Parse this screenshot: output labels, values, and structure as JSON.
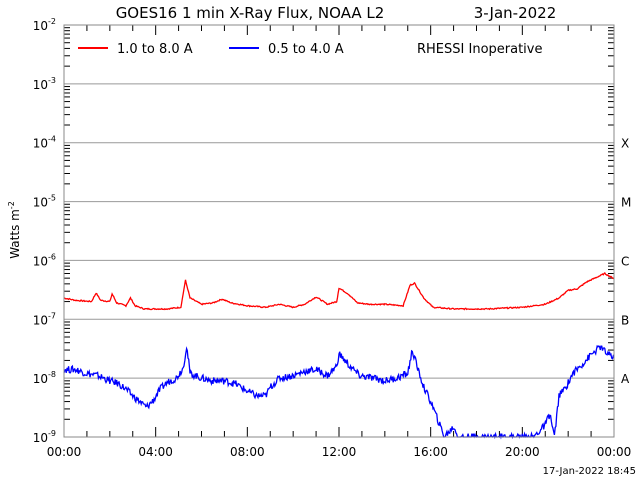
{
  "chart_data": {
    "type": "line",
    "title": "GOES16 1 min X-Ray Flux, NOAA L2",
    "date": "3-Jan-2022",
    "ylabel": "Watts m",
    "ylabel_exp": "-2",
    "ylim": [
      1e-09,
      0.01
    ],
    "yscale": "log",
    "xlim": [
      0,
      24
    ],
    "x_ticks": [
      {
        "hour": 0,
        "label": "00:00"
      },
      {
        "hour": 4,
        "label": "04:00"
      },
      {
        "hour": 8,
        "label": "08:00"
      },
      {
        "hour": 12,
        "label": "12:00"
      },
      {
        "hour": 16,
        "label": "16:00"
      },
      {
        "hour": 20,
        "label": "20:00"
      },
      {
        "hour": 24,
        "label": "00:00"
      }
    ],
    "y_ticks": [
      {
        "exp": -2,
        "base": "10",
        "sup": "-2"
      },
      {
        "exp": -3,
        "base": "10",
        "sup": "-3"
      },
      {
        "exp": -4,
        "base": "10",
        "sup": "-4"
      },
      {
        "exp": -5,
        "base": "10",
        "sup": "-5"
      },
      {
        "exp": -6,
        "base": "10",
        "sup": "-6"
      },
      {
        "exp": -7,
        "base": "10",
        "sup": "-7"
      },
      {
        "exp": -8,
        "base": "10",
        "sup": "-8"
      },
      {
        "exp": -9,
        "base": "10",
        "sup": "-9"
      }
    ],
    "flare_classes": [
      {
        "exp": -4,
        "label": "X"
      },
      {
        "exp": -5,
        "label": "M"
      },
      {
        "exp": -6,
        "label": "C"
      },
      {
        "exp": -7,
        "label": "B"
      },
      {
        "exp": -8,
        "label": "A"
      }
    ],
    "legend": {
      "placement": "top-left",
      "note": "RHESSI Inoperative"
    },
    "series": [
      {
        "name": "1.0 to 8.0 A",
        "color": "#ff0000",
        "points": [
          [
            0,
            2.3e-07
          ],
          [
            0.5,
            2.1e-07
          ],
          [
            1.2,
            2e-07
          ],
          [
            1.4,
            2.8e-07
          ],
          [
            1.6,
            2.1e-07
          ],
          [
            2.0,
            2e-07
          ],
          [
            2.1,
            2.7e-07
          ],
          [
            2.3,
            1.9e-07
          ],
          [
            2.7,
            1.7e-07
          ],
          [
            2.9,
            2.3e-07
          ],
          [
            3.1,
            1.7e-07
          ],
          [
            3.5,
            1.5e-07
          ],
          [
            4.5,
            1.5e-07
          ],
          [
            5.1,
            1.6e-07
          ],
          [
            5.3,
            4.6e-07
          ],
          [
            5.5,
            2.3e-07
          ],
          [
            6.0,
            1.8e-07
          ],
          [
            6.5,
            1.9e-07
          ],
          [
            6.9,
            2.2e-07
          ],
          [
            7.3,
            1.9e-07
          ],
          [
            8.0,
            1.7e-07
          ],
          [
            8.8,
            1.6e-07
          ],
          [
            9.4,
            1.8e-07
          ],
          [
            10.0,
            1.6e-07
          ],
          [
            10.5,
            1.8e-07
          ],
          [
            11.0,
            2.4e-07
          ],
          [
            11.5,
            1.8e-07
          ],
          [
            11.9,
            2e-07
          ],
          [
            12.0,
            3.4e-07
          ],
          [
            12.4,
            2.7e-07
          ],
          [
            12.8,
            1.9e-07
          ],
          [
            13.3,
            1.8e-07
          ],
          [
            14.0,
            1.8e-07
          ],
          [
            14.8,
            1.7e-07
          ],
          [
            15.1,
            3.8e-07
          ],
          [
            15.3,
            4.1e-07
          ],
          [
            15.7,
            2.3e-07
          ],
          [
            16.1,
            1.6e-07
          ],
          [
            17.0,
            1.5e-07
          ],
          [
            18.5,
            1.5e-07
          ],
          [
            20.0,
            1.6e-07
          ],
          [
            21.0,
            1.8e-07
          ],
          [
            21.6,
            2.3e-07
          ],
          [
            22.0,
            3.1e-07
          ],
          [
            22.4,
            3.3e-07
          ],
          [
            22.8,
            4.3e-07
          ],
          [
            23.3,
            5.3e-07
          ],
          [
            23.6,
            6e-07
          ],
          [
            24,
            4.9e-07
          ]
        ]
      },
      {
        "name": "0.5 to 4.0 A",
        "color": "#0000ff",
        "points": [
          [
            0,
            1.4e-08
          ],
          [
            0.5,
            1.4e-08
          ],
          [
            1.0,
            1.2e-08
          ],
          [
            1.5,
            1.1e-08
          ],
          [
            2.0,
            9e-09
          ],
          [
            2.4,
            8e-09
          ],
          [
            2.7,
            6.5e-09
          ],
          [
            3.0,
            5e-09
          ],
          [
            3.3,
            4e-09
          ],
          [
            3.6,
            3.2e-09
          ],
          [
            3.9,
            4.2e-09
          ],
          [
            4.2,
            6.5e-09
          ],
          [
            4.5,
            8.5e-09
          ],
          [
            4.9,
            1e-08
          ],
          [
            5.2,
            1.5e-08
          ],
          [
            5.35,
            3.5e-08
          ],
          [
            5.5,
            1.2e-08
          ],
          [
            6.0,
            1e-08
          ],
          [
            6.5,
            9e-09
          ],
          [
            7.0,
            9e-09
          ],
          [
            7.5,
            8e-09
          ],
          [
            8.0,
            6e-09
          ],
          [
            8.4,
            5e-09
          ],
          [
            8.8,
            5e-09
          ],
          [
            9.0,
            7e-09
          ],
          [
            9.4,
            1e-08
          ],
          [
            10.0,
            1.1e-08
          ],
          [
            10.5,
            1.3e-08
          ],
          [
            11.0,
            1.4e-08
          ],
          [
            11.5,
            1.1e-08
          ],
          [
            11.9,
            1.6e-08
          ],
          [
            12.0,
            2.6e-08
          ],
          [
            12.4,
            1.7e-08
          ],
          [
            12.9,
            1.1e-08
          ],
          [
            13.5,
            1e-08
          ],
          [
            14.0,
            9e-09
          ],
          [
            14.5,
            1e-08
          ],
          [
            15.0,
            1.2e-08
          ],
          [
            15.2,
            3e-08
          ],
          [
            15.4,
            1.6e-08
          ],
          [
            15.7,
            7e-09
          ],
          [
            16.0,
            4e-09
          ],
          [
            16.3,
            2e-09
          ],
          [
            16.6,
            1e-09
          ],
          [
            17.0,
            1.5e-09
          ],
          [
            17.2,
            1e-09
          ],
          [
            18.0,
            1e-09
          ],
          [
            20.0,
            1e-09
          ],
          [
            20.5,
            1e-09
          ],
          [
            21.0,
            1.6e-09
          ],
          [
            21.2,
            2.5e-09
          ],
          [
            21.4,
            1e-09
          ],
          [
            21.6,
            5e-09
          ],
          [
            21.9,
            7e-09
          ],
          [
            22.2,
            1.2e-08
          ],
          [
            22.6,
            1.7e-08
          ],
          [
            23.0,
            2.5e-08
          ],
          [
            23.4,
            3.4e-08
          ],
          [
            23.7,
            2.6e-08
          ],
          [
            24,
            2.2e-08
          ]
        ]
      }
    ],
    "footer": "17-Jan-2022 18:45"
  }
}
